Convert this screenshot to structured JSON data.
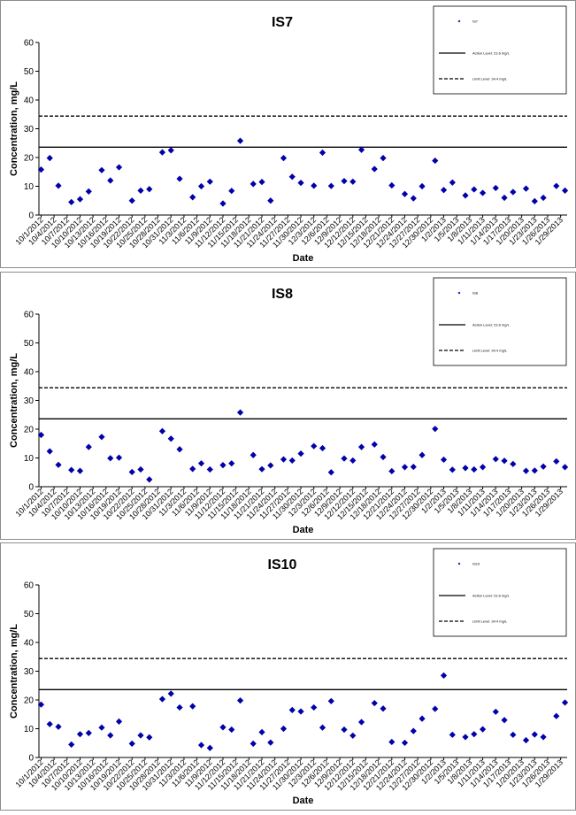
{
  "chart_data": [
    {
      "type": "scatter",
      "title": "IS7",
      "xlabel": "Date",
      "ylabel": "Concentration, mg/L",
      "ylim": [
        0,
        60
      ],
      "yticks": [
        0,
        10,
        20,
        30,
        40,
        50,
        60
      ],
      "x_tick_labels": [
        "10/1/2012",
        "10/4/2012",
        "10/7/2012",
        "10/10/2012",
        "10/13/2012",
        "10/16/2012",
        "10/19/2012",
        "10/22/2012",
        "10/25/2012",
        "10/28/2012",
        "10/31/2012",
        "11/3/2012",
        "11/6/2012",
        "11/9/2012",
        "11/12/2012",
        "11/15/2012",
        "11/18/2012",
        "11/21/2012",
        "11/24/2012",
        "11/27/2012",
        "11/30/2012",
        "12/3/2012",
        "12/6/2012",
        "12/9/2012",
        "12/12/2012",
        "12/15/2012",
        "12/18/2012",
        "12/21/2012",
        "12/24/2012",
        "12/27/2012",
        "12/30/2012",
        "1/2/2013",
        "1/5/2013",
        "1/8/2013",
        "1/11/2013",
        "1/14/2013",
        "1/17/2013",
        "1/20/2013",
        "1/23/2013",
        "1/26/2013",
        "1/29/2013"
      ],
      "legend": {
        "position": "top-right",
        "entries": [
          "IS7",
          "Action Level: 23.6 mg/L",
          "Limit Level: 34.4 mg/L"
        ]
      },
      "reference_lines": [
        {
          "name": "Action Level: 23.6 mg/L",
          "value": 23.6,
          "style": "solid"
        },
        {
          "name": "Limit Level: 34.4 mg/L",
          "value": 34.4,
          "style": "dashed"
        }
      ],
      "series": [
        {
          "name": "IS7",
          "color": "#0000aa",
          "points": [
            [
              "10/1/2012",
              15.8
            ],
            [
              "10/3/2012",
              19.8
            ],
            [
              "10/5/2012",
              10.2
            ],
            [
              "10/8/2012",
              4.5
            ],
            [
              "10/10/2012",
              5.5
            ],
            [
              "10/12/2012",
              8.2
            ],
            [
              "10/15/2012",
              15.6
            ],
            [
              "10/17/2012",
              12
            ],
            [
              "10/19/2012",
              16.6
            ],
            [
              "10/22/2012",
              5
            ],
            [
              "10/24/2012",
              8.5
            ],
            [
              "10/26/2012",
              9
            ],
            [
              "10/29/2012",
              21.8
            ],
            [
              "10/31/2012",
              22.5
            ],
            [
              "11/2/2012",
              12.6
            ],
            [
              "11/5/2012",
              6.2
            ],
            [
              "11/7/2012",
              10
            ],
            [
              "11/9/2012",
              11.6
            ],
            [
              "11/12/2012",
              4
            ],
            [
              "11/14/2012",
              8.4
            ],
            [
              "11/16/2012",
              25.8
            ],
            [
              "11/19/2012",
              10.8
            ],
            [
              "11/21/2012",
              11.5
            ],
            [
              "11/23/2012",
              5
            ],
            [
              "11/26/2012",
              19.8
            ],
            [
              "11/28/2012",
              13.3
            ],
            [
              "11/30/2012",
              11.2
            ],
            [
              "12/3/2012",
              10.2
            ],
            [
              "12/5/2012",
              21.7
            ],
            [
              "12/7/2012",
              10.1
            ],
            [
              "12/10/2012",
              11.8
            ],
            [
              "12/12/2012",
              11.6
            ],
            [
              "12/14/2012",
              22.7
            ],
            [
              "12/17/2012",
              16
            ],
            [
              "12/19/2012",
              19.8
            ],
            [
              "12/21/2012",
              10.3
            ],
            [
              "12/24/2012",
              7.3
            ],
            [
              "12/26/2012",
              5.8
            ],
            [
              "12/28/2012",
              10
            ],
            [
              "12/31/2012",
              18.9
            ],
            [
              "1/2/2013",
              8.7
            ],
            [
              "1/4/2013",
              11.3
            ],
            [
              "1/7/2013",
              6.8
            ],
            [
              "1/9/2013",
              8.9
            ],
            [
              "1/11/2013",
              7.7
            ],
            [
              "1/14/2013",
              9.4
            ],
            [
              "1/16/2013",
              6
            ],
            [
              "1/18/2013",
              8
            ],
            [
              "1/21/2013",
              9.2
            ],
            [
              "1/23/2013",
              4.8
            ],
            [
              "1/25/2013",
              6
            ],
            [
              "1/28/2013",
              10.1
            ],
            [
              "1/30/2013",
              8.5
            ]
          ]
        }
      ]
    },
    {
      "type": "scatter",
      "title": "IS8",
      "xlabel": "Date",
      "ylabel": "Concentration, mg/L",
      "ylim": [
        0,
        60
      ],
      "yticks": [
        0,
        10,
        20,
        30,
        40,
        50,
        60
      ],
      "x_tick_labels": [
        "10/1/2012",
        "10/4/2012",
        "10/7/2012",
        "10/10/2012",
        "10/13/2012",
        "10/16/2012",
        "10/19/2012",
        "10/22/2012",
        "10/25/2012",
        "10/28/2012",
        "10/31/2012",
        "11/3/2012",
        "11/6/2012",
        "11/9/2012",
        "11/12/2012",
        "11/15/2012",
        "11/18/2012",
        "11/21/2012",
        "11/24/2012",
        "11/27/2012",
        "11/30/2012",
        "12/3/2012",
        "12/6/2012",
        "12/9/2012",
        "12/12/2012",
        "12/15/2012",
        "12/18/2012",
        "12/21/2012",
        "12/24/2012",
        "12/27/2012",
        "12/30/2012",
        "1/2/2013",
        "1/5/2013",
        "1/8/2013",
        "1/11/2013",
        "1/14/2013",
        "1/17/2013",
        "1/20/2013",
        "1/23/2013",
        "1/26/2013",
        "1/29/2013"
      ],
      "legend": {
        "position": "top-right",
        "entries": [
          "IS8",
          "Action Level: 23.6 mg/L",
          "Limit Level: 34.4 mg/L"
        ]
      },
      "reference_lines": [
        {
          "name": "Action Level: 23.6 mg/L",
          "value": 23.6,
          "style": "solid"
        },
        {
          "name": "Limit Level: 34.4 mg/L",
          "value": 34.4,
          "style": "dashed"
        }
      ],
      "series": [
        {
          "name": "IS8",
          "color": "#0000aa",
          "points": [
            [
              "10/1/2012",
              18
            ],
            [
              "10/3/2012",
              12.3
            ],
            [
              "10/5/2012",
              7.6
            ],
            [
              "10/8/2012",
              5.8
            ],
            [
              "10/10/2012",
              5.5
            ],
            [
              "10/12/2012",
              13.8
            ],
            [
              "10/15/2012",
              17.3
            ],
            [
              "10/17/2012",
              9.9
            ],
            [
              "10/19/2012",
              10.1
            ],
            [
              "10/22/2012",
              5.1
            ],
            [
              "10/24/2012",
              6
            ],
            [
              "10/26/2012",
              2.5
            ],
            [
              "10/29/2012",
              19.3
            ],
            [
              "10/31/2012",
              16.7
            ],
            [
              "11/2/2012",
              13
            ],
            [
              "11/5/2012",
              6.2
            ],
            [
              "11/7/2012",
              8.1
            ],
            [
              "11/9/2012",
              6
            ],
            [
              "11/12/2012",
              7.5
            ],
            [
              "11/14/2012",
              8.1
            ],
            [
              "11/16/2012",
              25.8
            ],
            [
              "11/19/2012",
              11
            ],
            [
              "11/21/2012",
              6.1
            ],
            [
              "11/23/2012",
              7.4
            ],
            [
              "11/26/2012",
              9.5
            ],
            [
              "11/28/2012",
              9.1
            ],
            [
              "11/30/2012",
              11.5
            ],
            [
              "12/3/2012",
              14.1
            ],
            [
              "12/5/2012",
              13.4
            ],
            [
              "12/7/2012",
              5
            ],
            [
              "12/10/2012",
              9.8
            ],
            [
              "12/12/2012",
              9.1
            ],
            [
              "12/14/2012",
              13.8
            ],
            [
              "12/17/2012",
              14.7
            ],
            [
              "12/19/2012",
              10.3
            ],
            [
              "12/21/2012",
              5.4
            ],
            [
              "12/24/2012",
              6.8
            ],
            [
              "12/26/2012",
              6.9
            ],
            [
              "12/28/2012",
              11
            ],
            [
              "12/31/2012",
              20.1
            ],
            [
              "1/2/2013",
              9.4
            ],
            [
              "1/4/2013",
              5.9
            ],
            [
              "1/7/2013",
              6.5
            ],
            [
              "1/9/2013",
              6
            ],
            [
              "1/11/2013",
              6.8
            ],
            [
              "1/14/2013",
              9.6
            ],
            [
              "1/16/2013",
              9
            ],
            [
              "1/18/2013",
              7.9
            ],
            [
              "1/21/2013",
              5.5
            ],
            [
              "1/23/2013",
              5.6
            ],
            [
              "1/25/2013",
              7
            ],
            [
              "1/28/2013",
              8.8
            ],
            [
              "1/30/2013",
              6.8
            ]
          ]
        }
      ]
    },
    {
      "type": "scatter",
      "title": "IS10",
      "xlabel": "Date",
      "ylabel": "Concentration, mg/L",
      "ylim": [
        0,
        60
      ],
      "yticks": [
        0,
        10,
        20,
        30,
        40,
        50,
        60
      ],
      "x_tick_labels": [
        "10/1/2012",
        "10/4/2012",
        "10/7/2012",
        "10/10/2012",
        "10/13/2012",
        "10/16/2012",
        "10/19/2012",
        "10/22/2012",
        "10/25/2012",
        "10/28/2012",
        "10/31/2012",
        "11/3/2012",
        "11/6/2012",
        "11/9/2012",
        "11/12/2012",
        "11/15/2012",
        "11/18/2012",
        "11/21/2012",
        "11/24/2012",
        "11/27/2012",
        "11/30/2012",
        "12/3/2012",
        "12/6/2012",
        "12/9/2012",
        "12/12/2012",
        "12/15/2012",
        "12/18/2012",
        "12/21/2012",
        "12/24/2012",
        "12/27/2012",
        "12/30/2012",
        "1/2/2013",
        "1/5/2013",
        "1/8/2013",
        "1/11/2013",
        "1/14/2013",
        "1/17/2013",
        "1/20/2013",
        "1/23/2013",
        "1/26/2013",
        "1/29/2013"
      ],
      "legend": {
        "position": "top-right",
        "entries": [
          "IS10",
          "Action Level: 23.6 mg/L",
          "Limit Level: 34.4 mg/L"
        ]
      },
      "reference_lines": [
        {
          "name": "Action Level: 23.6 mg/L",
          "value": 23.6,
          "style": "solid"
        },
        {
          "name": "Limit Level: 34.4 mg/L",
          "value": 34.4,
          "style": "dashed"
        }
      ],
      "series": [
        {
          "name": "IS10",
          "color": "#0000aa",
          "points": [
            [
              "10/1/2012",
              18.4
            ],
            [
              "10/3/2012",
              11.6
            ],
            [
              "10/5/2012",
              10.7
            ],
            [
              "10/8/2012",
              4.5
            ],
            [
              "10/10/2012",
              8.1
            ],
            [
              "10/12/2012",
              8.5
            ],
            [
              "10/15/2012",
              10.4
            ],
            [
              "10/17/2012",
              7.7
            ],
            [
              "10/19/2012",
              12.5
            ],
            [
              "10/22/2012",
              4.8
            ],
            [
              "10/24/2012",
              7.7
            ],
            [
              "10/26/2012",
              7
            ],
            [
              "10/29/2012",
              20.3
            ],
            [
              "10/31/2012",
              22.2
            ],
            [
              "11/2/2012",
              17.4
            ],
            [
              "11/5/2012",
              17.8
            ],
            [
              "11/7/2012",
              4.3
            ],
            [
              "11/9/2012",
              3.3
            ],
            [
              "11/12/2012",
              10.5
            ],
            [
              "11/14/2012",
              9.7
            ],
            [
              "11/16/2012",
              19.8
            ],
            [
              "11/19/2012",
              4.8
            ],
            [
              "11/21/2012",
              8.8
            ],
            [
              "11/23/2012",
              5.2
            ],
            [
              "11/26/2012",
              10
            ],
            [
              "11/28/2012",
              16.5
            ],
            [
              "11/30/2012",
              16
            ],
            [
              "12/3/2012",
              17.4
            ],
            [
              "12/5/2012",
              10.4
            ],
            [
              "12/7/2012",
              19.6
            ],
            [
              "12/10/2012",
              9.7
            ],
            [
              "12/12/2012",
              7.6
            ],
            [
              "12/14/2012",
              12.3
            ],
            [
              "12/17/2012",
              18.9
            ],
            [
              "12/19/2012",
              17
            ],
            [
              "12/21/2012",
              5.4
            ],
            [
              "12/24/2012",
              5.1
            ],
            [
              "12/26/2012",
              9.2
            ],
            [
              "12/28/2012",
              13.5
            ],
            [
              "12/31/2012",
              16.9
            ],
            [
              "1/2/2013",
              28.5
            ],
            [
              "1/4/2013",
              7.9
            ],
            [
              "1/7/2013",
              7.1
            ],
            [
              "1/9/2013",
              8.1
            ],
            [
              "1/11/2013",
              9.8
            ],
            [
              "1/14/2013",
              15.9
            ],
            [
              "1/16/2013",
              13
            ],
            [
              "1/18/2013",
              7.9
            ],
            [
              "1/21/2013",
              6
            ],
            [
              "1/23/2013",
              8
            ],
            [
              "1/25/2013",
              7.1
            ],
            [
              "1/28/2013",
              14.4
            ],
            [
              "1/30/2013",
              19.1
            ]
          ]
        }
      ]
    }
  ]
}
